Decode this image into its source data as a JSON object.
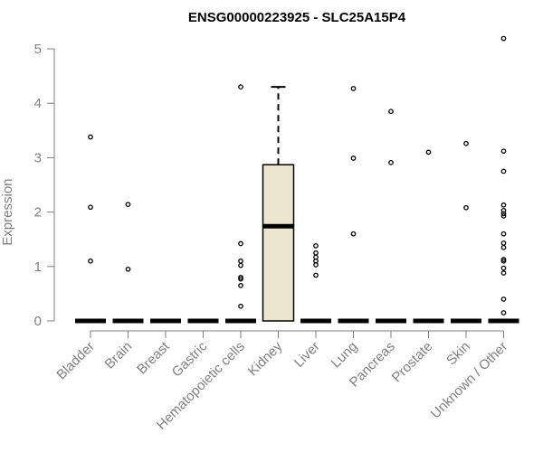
{
  "chart_data": {
    "type": "boxplot",
    "title": "ENSG00000223925 - SLC25A15P4",
    "xlabel": "",
    "ylabel": "Expression",
    "ylim": [
      0,
      5.25
    ],
    "yticks": [
      0,
      1,
      2,
      3,
      4,
      5
    ],
    "categories": [
      "Bladder",
      "Brain",
      "Breast",
      "Gastric",
      "Hematopoietic cells",
      "Kidney",
      "Liver",
      "Lung",
      "Pancreas",
      "Prostate",
      "Skin",
      "Unknown / Other"
    ],
    "boxes": [
      {
        "category": "Bladder",
        "q1": 0,
        "median": 0,
        "q3": 0,
        "whisker_low": 0,
        "whisker_high": 0,
        "outliers": [
          1.1,
          2.09,
          3.38
        ]
      },
      {
        "category": "Brain",
        "q1": 0,
        "median": 0,
        "q3": 0,
        "whisker_low": 0,
        "whisker_high": 0,
        "outliers": [
          0.95,
          2.14
        ]
      },
      {
        "category": "Breast",
        "q1": 0,
        "median": 0,
        "q3": 0,
        "whisker_low": 0,
        "whisker_high": 0,
        "outliers": []
      },
      {
        "category": "Gastric",
        "q1": 0,
        "median": 0,
        "q3": 0,
        "whisker_low": 0,
        "whisker_high": 0,
        "outliers": []
      },
      {
        "category": "Hematopoietic cells",
        "q1": 0,
        "median": 0,
        "q3": 0,
        "whisker_low": 0,
        "whisker_high": 0,
        "outliers": [
          0.27,
          0.65,
          0.77,
          0.8,
          1.02,
          1.1,
          1.42,
          4.3
        ]
      },
      {
        "category": "Kidney",
        "q1": 0,
        "median": 1.74,
        "q3": 2.87,
        "whisker_low": 0,
        "whisker_high": 4.3,
        "outliers": []
      },
      {
        "category": "Liver",
        "q1": 0,
        "median": 0,
        "q3": 0,
        "whisker_low": 0,
        "whisker_high": 0,
        "outliers": [
          0.84,
          1.03,
          1.1,
          1.17,
          1.25,
          1.38
        ]
      },
      {
        "category": "Lung",
        "q1": 0,
        "median": 0,
        "q3": 0,
        "whisker_low": 0,
        "whisker_high": 0,
        "outliers": [
          1.6,
          2.99,
          4.27
        ]
      },
      {
        "category": "Pancreas",
        "q1": 0,
        "median": 0,
        "q3": 0,
        "whisker_low": 0,
        "whisker_high": 0,
        "outliers": [
          2.91,
          3.85
        ]
      },
      {
        "category": "Prostate",
        "q1": 0,
        "median": 0,
        "q3": 0,
        "whisker_low": 0,
        "whisker_high": 0,
        "outliers": [
          3.1
        ]
      },
      {
        "category": "Skin",
        "q1": 0,
        "median": 0,
        "q3": 0,
        "whisker_low": 0,
        "whisker_high": 0,
        "outliers": [
          2.08,
          3.26
        ]
      },
      {
        "category": "Unknown / Other",
        "q1": 0,
        "median": 0,
        "q3": 0,
        "whisker_low": 0,
        "whisker_high": 0,
        "outliers": [
          0.15,
          0.4,
          0.88,
          0.97,
          1.1,
          1.13,
          1.35,
          1.43,
          1.6,
          1.93,
          1.97,
          2.03,
          2.13,
          2.75,
          3.12,
          5.19
        ]
      }
    ],
    "grid": false,
    "legend": "none"
  },
  "colors": {
    "box_fill": "#ede6ce",
    "box_stroke": "#000000",
    "axis": "#7f7f7f",
    "text_gray": "#808080",
    "title": "#000000"
  }
}
